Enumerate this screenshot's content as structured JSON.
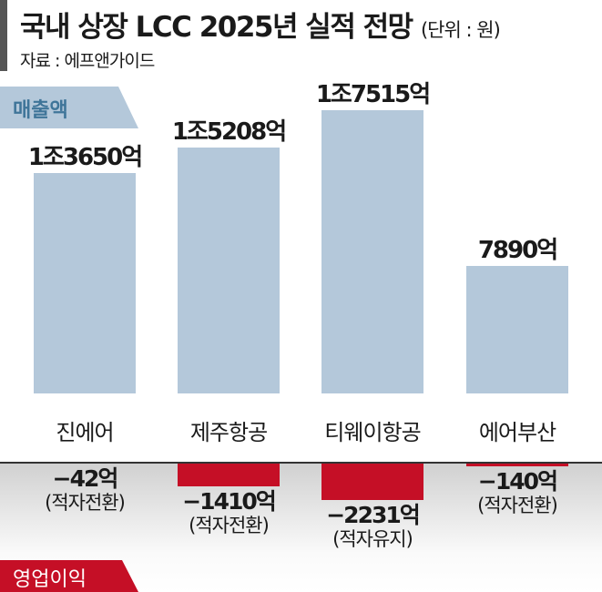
{
  "title": "국내 상장 LCC 2025년 실적 전망",
  "unit": "(단위 : 원)",
  "source": "자료 : 에프앤가이드",
  "chart_data": {
    "type": "bar",
    "title": "국내 상장 LCC 2025년 실적 전망",
    "categories": [
      "진에어",
      "제주항공",
      "티웨이항공",
      "에어부산"
    ],
    "series": [
      {
        "name": "매출액",
        "unit": "억원",
        "values": [
          13650,
          15208,
          17515,
          7890
        ],
        "labels": [
          "1조3650억",
          "1조5208억",
          "1조7515억",
          "7890억"
        ]
      },
      {
        "name": "영업이익",
        "unit": "억원",
        "values": [
          -42,
          -1410,
          -2231,
          -140
        ],
        "labels": [
          "−42억",
          "−1410억",
          "−2231억",
          "−140억"
        ],
        "notes": [
          "(적자전환)",
          "(적자전환)",
          "(적자유지)",
          "(적자전환)"
        ]
      }
    ],
    "colors": {
      "revenue": "#b4c8da",
      "operating": "#c50f26"
    }
  }
}
